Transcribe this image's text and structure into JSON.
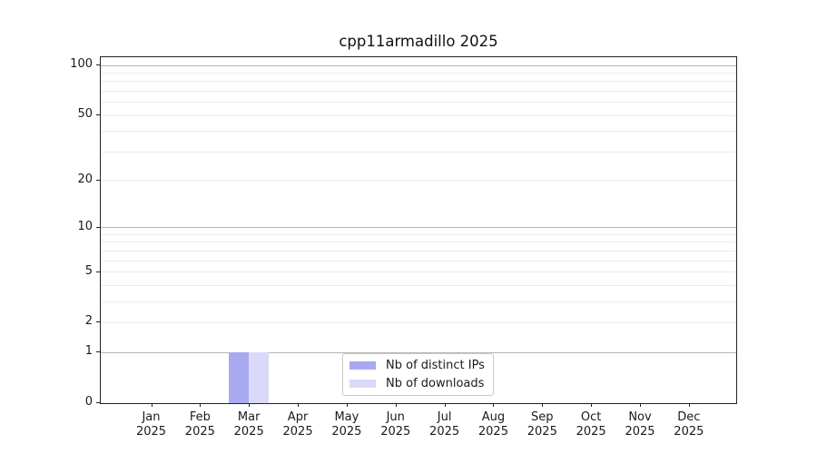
{
  "title": "cpp11armadillo 2025",
  "chart_data": {
    "type": "bar",
    "title": "cpp11armadillo 2025",
    "categories": [
      "Jan 2025",
      "Feb 2025",
      "Mar 2025",
      "Apr 2025",
      "May 2025",
      "Jun 2025",
      "Jul 2025",
      "Aug 2025",
      "Sep 2025",
      "Oct 2025",
      "Nov 2025",
      "Dec 2025"
    ],
    "months": [
      "Jan",
      "Feb",
      "Mar",
      "Apr",
      "May",
      "Jun",
      "Jul",
      "Aug",
      "Sep",
      "Oct",
      "Nov",
      "Dec"
    ],
    "year": "2025",
    "series": [
      {
        "name": "Nb of distinct IPs",
        "color": "#a9a9f2",
        "values": [
          0,
          0,
          1,
          0,
          0,
          0,
          0,
          0,
          0,
          0,
          0,
          0
        ]
      },
      {
        "name": "Nb of downloads",
        "color": "#d9d9f8",
        "values": [
          0,
          0,
          1,
          0,
          0,
          0,
          0,
          0,
          0,
          0,
          0,
          0
        ]
      }
    ],
    "yscale": "log1p",
    "ylim": [
      0,
      112
    ],
    "xlabel": "",
    "ylabel": "",
    "y_ticks": [
      0,
      1,
      2,
      5,
      10,
      20,
      50,
      100
    ],
    "y_major_gridlines": [
      1,
      10,
      100
    ],
    "y_minor_gridlines": [
      2,
      3,
      4,
      5,
      6,
      7,
      8,
      9,
      20,
      30,
      40,
      50,
      60,
      70,
      80,
      90
    ],
    "grid": true,
    "legend_position": "lower center"
  },
  "colors": {
    "major_grid": "#b4b4b4",
    "minor_grid": "#ebebeb",
    "spine": "#222222",
    "text": "#1a1a1a",
    "legend_border": "#c9c9c9"
  }
}
